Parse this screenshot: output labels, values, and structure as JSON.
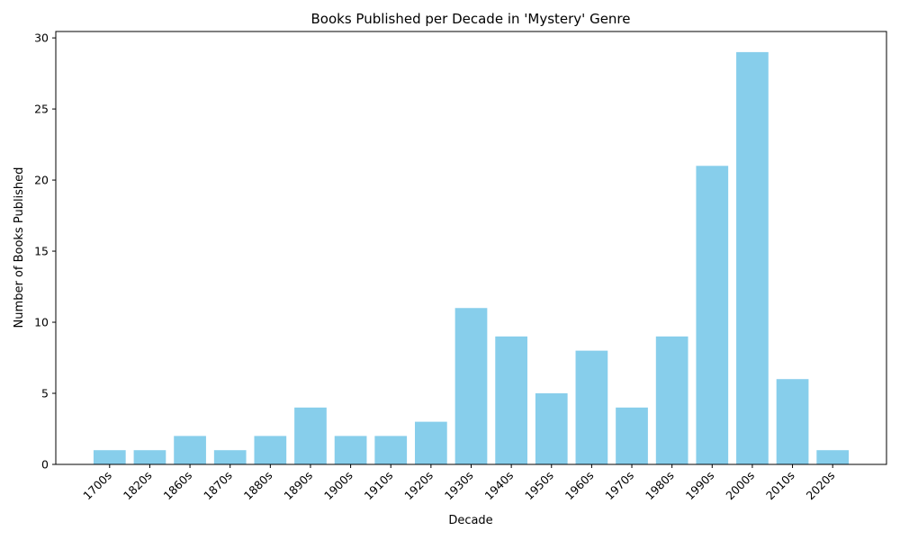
{
  "chart_data": {
    "type": "bar",
    "title": "Books Published per Decade in 'Mystery' Genre",
    "xlabel": "Decade",
    "ylabel": "Number of Books Published",
    "categories": [
      "1700s",
      "1820s",
      "1860s",
      "1870s",
      "1880s",
      "1890s",
      "1900s",
      "1910s",
      "1920s",
      "1930s",
      "1940s",
      "1950s",
      "1960s",
      "1970s",
      "1980s",
      "1990s",
      "2000s",
      "2010s",
      "2020s"
    ],
    "values": [
      1,
      1,
      2,
      1,
      2,
      4,
      2,
      2,
      3,
      11,
      9,
      5,
      8,
      4,
      9,
      21,
      29,
      6,
      1
    ],
    "ylim": [
      0,
      30.45
    ],
    "yticks": [
      0,
      5,
      10,
      15,
      20,
      25,
      30
    ],
    "bar_color": "#87ceeb",
    "grid": false,
    "legend": false
  }
}
